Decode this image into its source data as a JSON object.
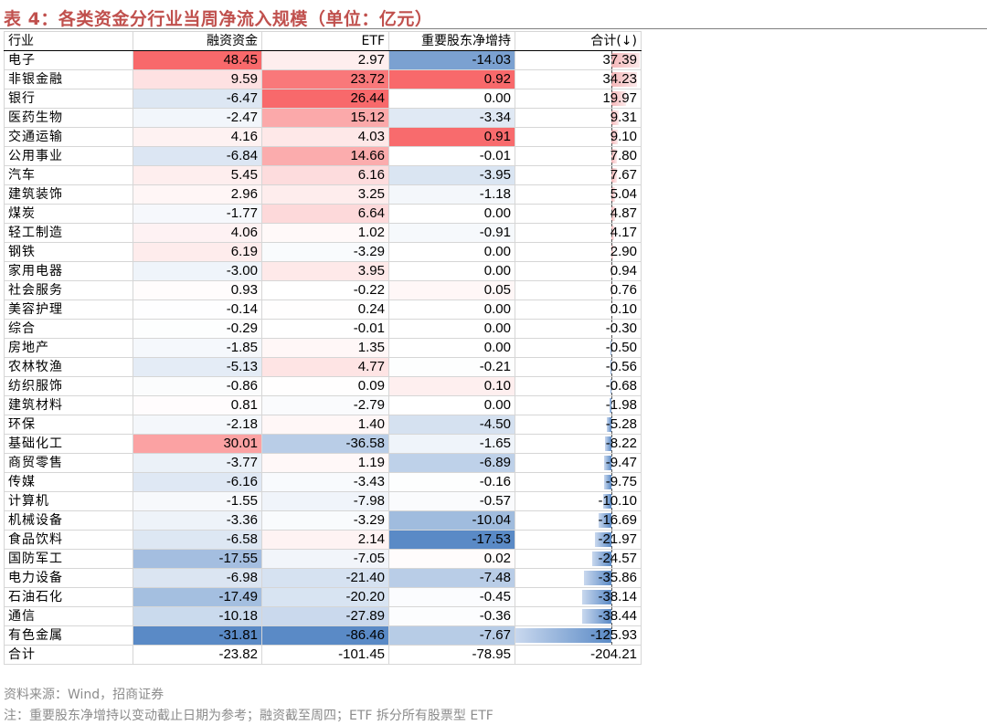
{
  "title": "表 4：各类资金分行业当周净流入规模（单位：亿元）",
  "columns": [
    "行业",
    "融资资金",
    "ETF",
    "重要股东净增持",
    "合计(↓)"
  ],
  "rows": [
    {
      "industry": "电子",
      "margin": "48.45",
      "etf": "2.97",
      "holder": "-14.03",
      "total": "37.39"
    },
    {
      "industry": "非银金融",
      "margin": "9.59",
      "etf": "23.72",
      "holder": "0.92",
      "total": "34.23"
    },
    {
      "industry": "银行",
      "margin": "-6.47",
      "etf": "26.44",
      "holder": "0.00",
      "total": "19.97"
    },
    {
      "industry": "医药生物",
      "margin": "-2.47",
      "etf": "15.12",
      "holder": "-3.34",
      "total": "9.31"
    },
    {
      "industry": "交通运输",
      "margin": "4.16",
      "etf": "4.03",
      "holder": "0.91",
      "total": "9.10"
    },
    {
      "industry": "公用事业",
      "margin": "-6.84",
      "etf": "14.66",
      "holder": "-0.01",
      "total": "7.80"
    },
    {
      "industry": "汽车",
      "margin": "5.45",
      "etf": "6.16",
      "holder": "-3.95",
      "total": "7.67"
    },
    {
      "industry": "建筑装饰",
      "margin": "2.96",
      "etf": "3.25",
      "holder": "-1.18",
      "total": "5.04"
    },
    {
      "industry": "煤炭",
      "margin": "-1.77",
      "etf": "6.64",
      "holder": "0.00",
      "total": "4.87"
    },
    {
      "industry": "轻工制造",
      "margin": "4.06",
      "etf": "1.02",
      "holder": "-0.91",
      "total": "4.17"
    },
    {
      "industry": "钢铁",
      "margin": "6.19",
      "etf": "-3.29",
      "holder": "0.00",
      "total": "2.90"
    },
    {
      "industry": "家用电器",
      "margin": "-3.00",
      "etf": "3.95",
      "holder": "0.00",
      "total": "0.94"
    },
    {
      "industry": "社会服务",
      "margin": "0.93",
      "etf": "-0.22",
      "holder": "0.05",
      "total": "0.76"
    },
    {
      "industry": "美容护理",
      "margin": "-0.14",
      "etf": "0.24",
      "holder": "0.00",
      "total": "0.10"
    },
    {
      "industry": "综合",
      "margin": "-0.29",
      "etf": "-0.01",
      "holder": "0.00",
      "total": "-0.30"
    },
    {
      "industry": "房地产",
      "margin": "-1.85",
      "etf": "1.35",
      "holder": "0.00",
      "total": "-0.50"
    },
    {
      "industry": "农林牧渔",
      "margin": "-5.13",
      "etf": "4.77",
      "holder": "-0.21",
      "total": "-0.56"
    },
    {
      "industry": "纺织服饰",
      "margin": "-0.86",
      "etf": "0.09",
      "holder": "0.10",
      "total": "-0.68"
    },
    {
      "industry": "建筑材料",
      "margin": "0.81",
      "etf": "-2.79",
      "holder": "0.00",
      "total": "-1.98"
    },
    {
      "industry": "环保",
      "margin": "-2.18",
      "etf": "1.40",
      "holder": "-4.50",
      "total": "-5.28"
    },
    {
      "industry": "基础化工",
      "margin": "30.01",
      "etf": "-36.58",
      "holder": "-1.65",
      "total": "-8.22"
    },
    {
      "industry": "商贸零售",
      "margin": "-3.77",
      "etf": "1.19",
      "holder": "-6.89",
      "total": "-9.47"
    },
    {
      "industry": "传媒",
      "margin": "-6.16",
      "etf": "-3.43",
      "holder": "-0.16",
      "total": "-9.75"
    },
    {
      "industry": "计算机",
      "margin": "-1.55",
      "etf": "-7.98",
      "holder": "-0.57",
      "total": "-10.10"
    },
    {
      "industry": "机械设备",
      "margin": "-3.36",
      "etf": "-3.29",
      "holder": "-10.04",
      "total": "-16.69"
    },
    {
      "industry": "食品饮料",
      "margin": "-6.58",
      "etf": "2.14",
      "holder": "-17.53",
      "total": "-21.97"
    },
    {
      "industry": "国防军工",
      "margin": "-17.55",
      "etf": "-7.05",
      "holder": "0.02",
      "total": "-24.57"
    },
    {
      "industry": "电力设备",
      "margin": "-6.98",
      "etf": "-21.40",
      "holder": "-7.48",
      "total": "-35.86"
    },
    {
      "industry": "石油石化",
      "margin": "-17.49",
      "etf": "-20.20",
      "holder": "-0.45",
      "total": "-38.14"
    },
    {
      "industry": "通信",
      "margin": "-10.18",
      "etf": "-27.89",
      "holder": "-0.36",
      "total": "-38.44"
    },
    {
      "industry": "有色金属",
      "margin": "-31.81",
      "etf": "-86.46",
      "holder": "-7.67",
      "total": "-125.93"
    }
  ],
  "totals": {
    "industry": "合计",
    "margin": "-23.82",
    "etf": "-101.45",
    "holder": "-78.95",
    "total": "-204.21"
  },
  "source": "资料来源：Wind，招商证券",
  "note": "注：重要股东净增持以变动截止日期为参考；融资截至周四；ETF 拆分所有股票型 ETF",
  "colors": {
    "title": "#c0504d",
    "positive": "#f8696b",
    "negative": "#5a8ac6",
    "bar_positive": "#f4b6b8",
    "bar_negative": "#5a8ac6"
  }
}
